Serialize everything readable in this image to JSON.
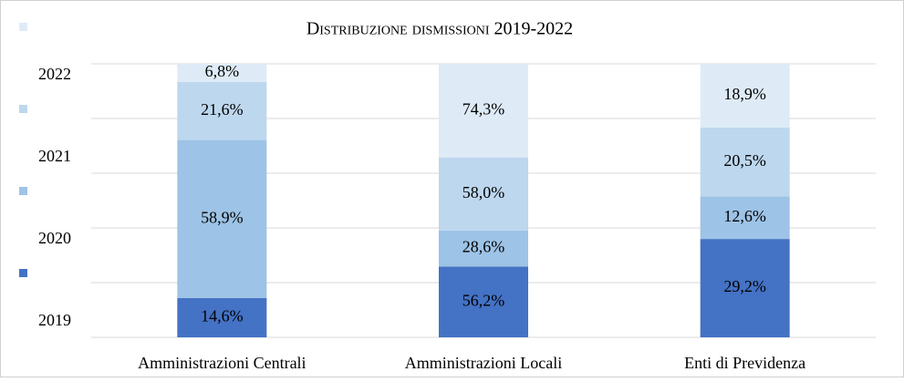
{
  "chart_data": {
    "type": "bar",
    "stacked": "percent",
    "title": "Distribuzione dismissioni 2019-2022",
    "categories": [
      "Amministrazioni Centrali",
      "Amministrazioni Locali",
      "Enti di Previdenza"
    ],
    "series": [
      {
        "name": "2019",
        "color": "#4472c4",
        "values": [
          14.6,
          56.2,
          29.2
        ],
        "value_labels": [
          "14,6%",
          "56,2%",
          "29,2%"
        ]
      },
      {
        "name": "2020",
        "color": "#9dc3e6",
        "values": [
          58.9,
          28.6,
          12.6
        ],
        "value_labels": [
          "58,9%",
          "28,6%",
          "12,6%"
        ]
      },
      {
        "name": "2021",
        "color": "#bdd7ee",
        "values": [
          21.6,
          58.0,
          20.5
        ],
        "value_labels": [
          "21,6%",
          "58,0%",
          "20,5%"
        ]
      },
      {
        "name": "2022",
        "color": "#deebf7",
        "values": [
          6.8,
          74.3,
          18.9
        ],
        "value_labels": [
          "6,8%",
          "74,3%",
          "18,9%"
        ]
      }
    ],
    "ylim": [
      0,
      100
    ],
    "yticks": [
      0,
      20,
      40,
      60,
      80,
      100
    ],
    "grid": true,
    "legend": "left"
  }
}
